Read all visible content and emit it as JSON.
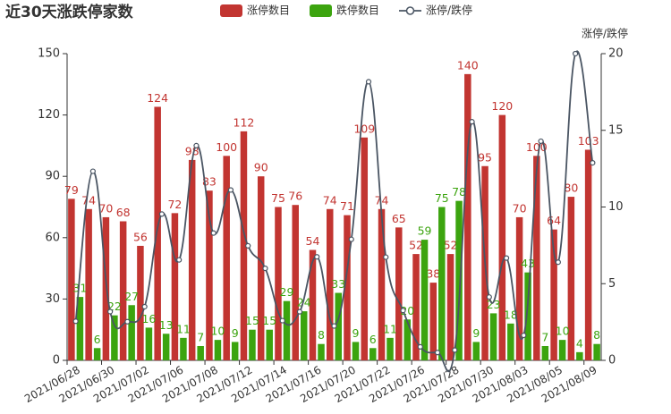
{
  "chart_data": {
    "type": "bar",
    "title": "近30天涨跌停家数",
    "y2_label": "涨停/跌停",
    "categories": [
      "2021/06/28",
      null,
      "2021/06/30",
      null,
      "2021/07/02",
      null,
      "2021/07/06",
      null,
      "2021/07/08",
      null,
      "2021/07/12",
      null,
      "2021/07/14",
      null,
      "2021/07/16",
      null,
      "2021/07/20",
      null,
      "2021/07/22",
      null,
      "2021/07/26",
      null,
      "2021/07/28",
      null,
      "2021/07/30",
      null,
      "2021/08/03",
      null,
      "2021/08/05",
      null,
      "2021/08/09"
    ],
    "series": [
      {
        "name": "涨停数目",
        "type": "bar",
        "color": "#c23531",
        "values": [
          79,
          74,
          70,
          68,
          56,
          124,
          72,
          98,
          83,
          100,
          112,
          90,
          75,
          76,
          54,
          74,
          71,
          109,
          74,
          65,
          52,
          38,
          52,
          140,
          95,
          120,
          70,
          100,
          64,
          80,
          103
        ]
      },
      {
        "name": "跌停数目",
        "type": "bar",
        "color": "#3ca40f",
        "values": [
          31,
          6,
          22,
          27,
          16,
          13,
          11,
          7,
          10,
          9,
          15,
          15,
          29,
          24,
          8,
          33,
          9,
          6,
          11,
          20,
          59,
          75,
          78,
          9,
          23,
          18,
          43,
          7,
          10,
          4,
          8
        ]
      },
      {
        "name": "涨停/跌停",
        "type": "line",
        "axis": "y2",
        "color": "#4a5563",
        "values": [
          2.55,
          12.33,
          3.18,
          2.52,
          3.5,
          9.54,
          6.55,
          14,
          8.3,
          11.11,
          7.47,
          6,
          2.59,
          3.17,
          6.75,
          2.24,
          7.89,
          18.17,
          6.73,
          3.25,
          0.88,
          0.51,
          0.67,
          15.56,
          4.13,
          6.67,
          1.63,
          14.29,
          6.4,
          20,
          12.88
        ]
      }
    ],
    "ylim": [
      0,
      150
    ],
    "yticks": [
      0,
      30,
      60,
      90,
      120,
      150
    ],
    "y2lim": [
      0,
      20
    ],
    "y2ticks": [
      0,
      5,
      10,
      15,
      20
    ],
    "grid": false
  }
}
